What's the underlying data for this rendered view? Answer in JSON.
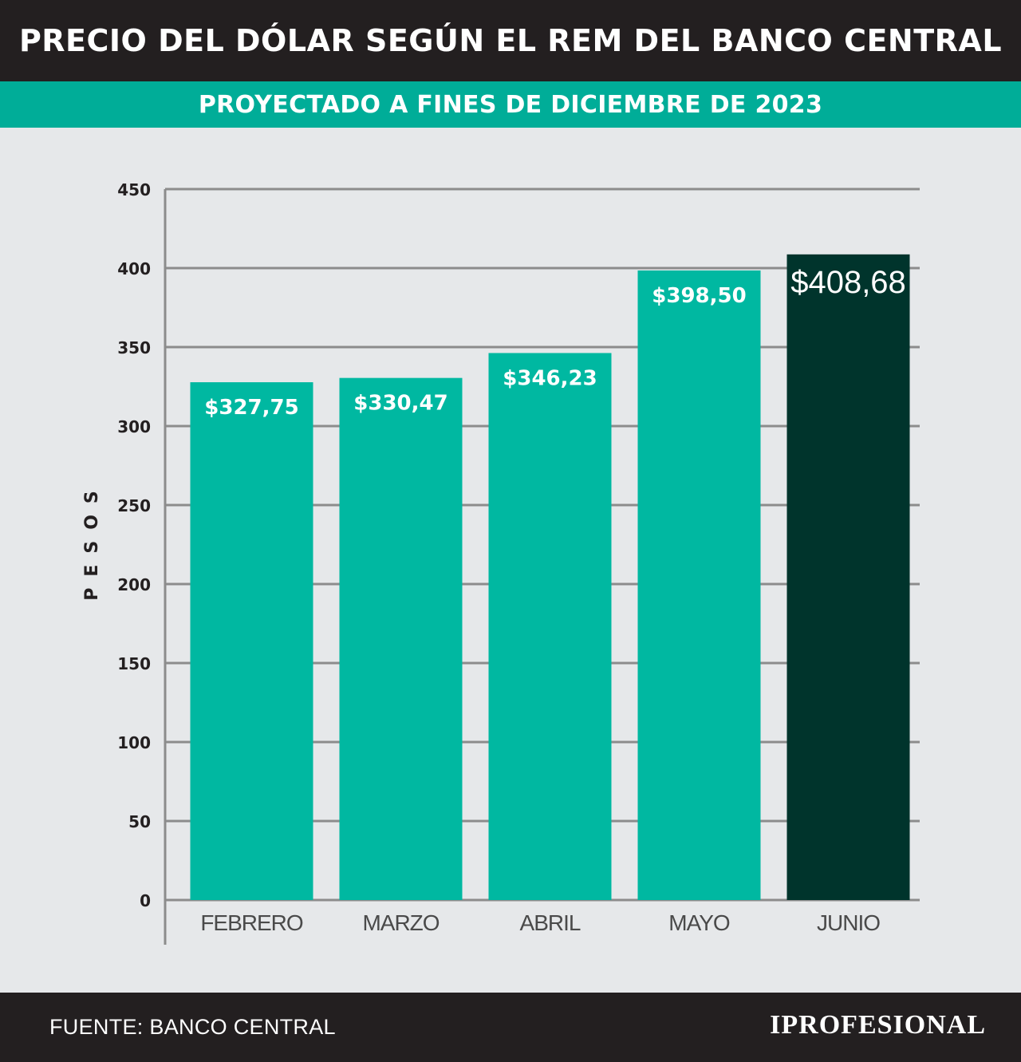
{
  "header": {
    "title": "PRECIO DEL DÓLAR SEGÚN EL REM DEL BANCO CENTRAL"
  },
  "subheader": {
    "title": "PROYECTADO A FINES DE DICIEMBRE DE 2023"
  },
  "chart_data": {
    "type": "bar",
    "title": "PRECIO DEL DÓLAR SEGÚN EL REM DEL BANCO CENTRAL",
    "subtitle": "PROYECTADO A FINES DE DICIEMBRE DE 2023",
    "categories": [
      "FEBRERO",
      "MARZO",
      "ABRIL",
      "MAYO",
      "JUNIO"
    ],
    "values": [
      327.75,
      330.47,
      346.23,
      398.5,
      408.68
    ],
    "value_labels": [
      "$327,75",
      "$330,47",
      "$346,23",
      "$398,50",
      "$408,68"
    ],
    "xlabel": "",
    "ylabel": "PESOS",
    "ylim": [
      0,
      450
    ],
    "yticks": [
      0,
      50,
      100,
      150,
      200,
      250,
      300,
      350,
      400,
      450
    ],
    "grid": true,
    "colors": {
      "bar": "#00b8a1",
      "highlight_bar": "#00342c",
      "grid": "#8c8c8c",
      "axis_text": "#231f20"
    },
    "highlight_index": 4
  },
  "footer": {
    "source": "FUENTE: BANCO CENTRAL",
    "logo": "IPROFESIONAL"
  }
}
